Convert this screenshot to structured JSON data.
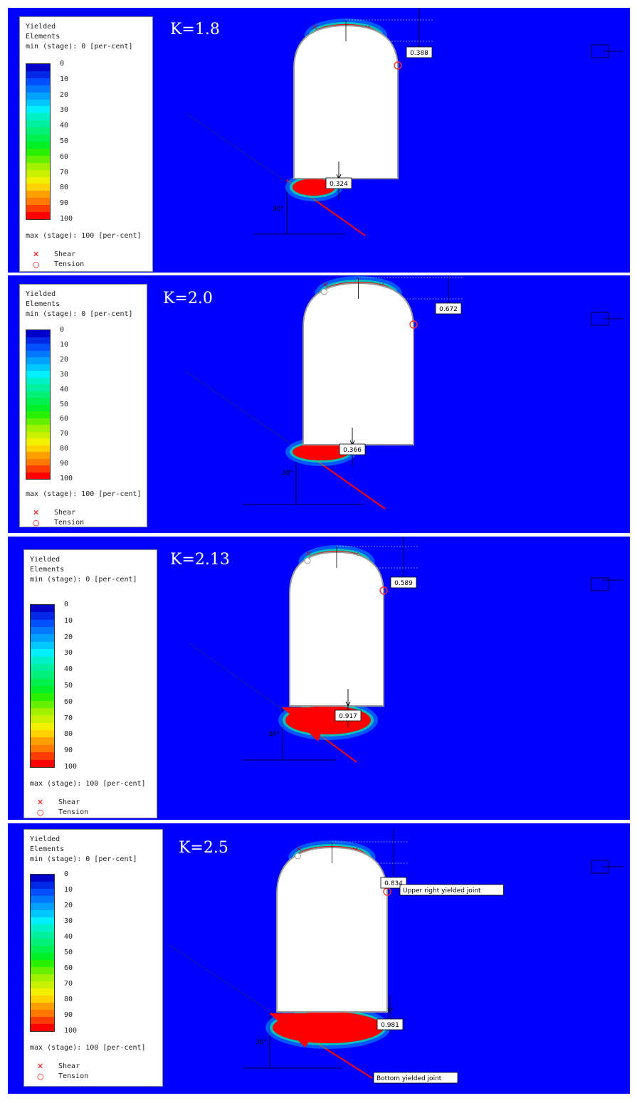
{
  "legend": {
    "title_line1": "Yielded",
    "title_line2": "Elements",
    "min_label": "min (stage): 0 [per-cent]",
    "max_label": "max (stage): 100 [per-cent]",
    "ticks": [
      "0",
      "10",
      "20",
      "30",
      "40",
      "50",
      "60",
      "70",
      "80",
      "90",
      "100"
    ],
    "shear_label": "Shear",
    "tension_label": "Tension",
    "shear_symbol": "✕",
    "tension_symbol": "○",
    "scale_colors": [
      "#0000c8",
      "#0028e6",
      "#0050ff",
      "#0078ff",
      "#00a0ff",
      "#00c8ff",
      "#00f0ff",
      "#00f0c8",
      "#00f0a0",
      "#00f078",
      "#00f050",
      "#00f028",
      "#28f000",
      "#64f000",
      "#a0f000",
      "#c8f000",
      "#f0f000",
      "#ffd200",
      "#ffa000",
      "#ff7800",
      "#ff3c00",
      "#ff0000"
    ]
  },
  "angle_label": "30°",
  "panels": [
    {
      "k_label": "K=1.8",
      "top_value": "0.388",
      "bottom_value": "0.324"
    },
    {
      "k_label": "K=2.0",
      "top_value": "0.672",
      "bottom_value": "0.366"
    },
    {
      "k_label": "K=2.13",
      "top_value": "0.589",
      "bottom_value": "0.917"
    },
    {
      "k_label": "K=2.5",
      "top_value": "0.834",
      "bottom_value": "0.981",
      "annotation_upper": "Upper right yielded joint",
      "annotation_bottom": "Bottom yielded joint"
    }
  ],
  "colors": {
    "background": "#0000ff",
    "yield_max": "#ff0000",
    "joint": "#ff0000",
    "tunnel": "#ffffff"
  }
}
